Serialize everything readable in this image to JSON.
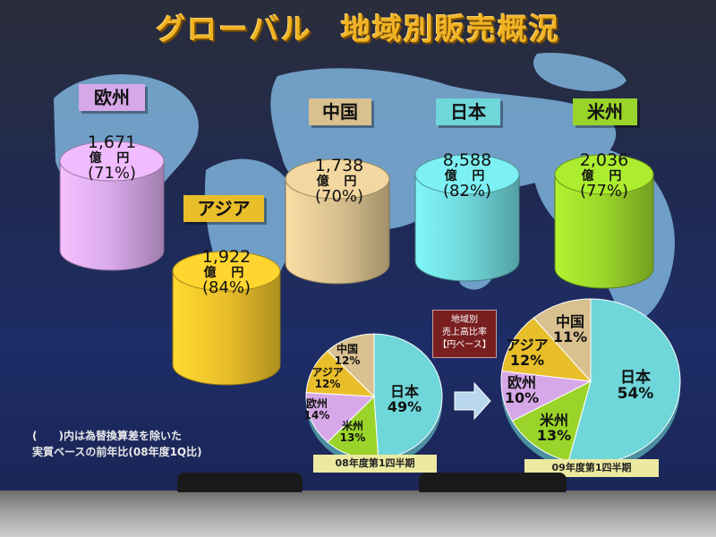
{
  "title": {
    "part1": "グローバル",
    "part2": "地域別販売概況"
  },
  "colors": {
    "europe": "#d7a8e8",
    "asia": "#e8be2a",
    "china": "#d9c08f",
    "japan": "#6fd6d9",
    "americas": "#9ad42a"
  },
  "chart_data": [
    {
      "type": "bar",
      "categories": [
        "欧州",
        "アジア",
        "中国",
        "日本",
        "米州"
      ],
      "values": [
        1671,
        1922,
        1738,
        8588,
        2036
      ],
      "value_labels": [
        "1,671",
        "1,922",
        "1,738",
        "8,588",
        "2,036"
      ],
      "unit": "億 円",
      "ratios": [
        "(71%)",
        "(84%)",
        "(70%)",
        "(82%)",
        "(77%)"
      ]
    },
    {
      "type": "pie",
      "caption": "08年度第1四半期",
      "slices": [
        {
          "label": "日本",
          "value": 49,
          "text": "49%"
        },
        {
          "label": "米州",
          "value": 13,
          "text": "13%"
        },
        {
          "label": "欧州",
          "value": 14,
          "text": "14%"
        },
        {
          "label": "アジア",
          "value": 12,
          "text": "12%"
        },
        {
          "label": "中国",
          "value": 12,
          "text": "12%"
        }
      ]
    },
    {
      "type": "pie",
      "caption": "09年度第1四半期",
      "slices": [
        {
          "label": "日本",
          "value": 54,
          "text": "54%"
        },
        {
          "label": "米州",
          "value": 13,
          "text": "13%"
        },
        {
          "label": "欧州",
          "value": 10,
          "text": "10%"
        },
        {
          "label": "アジア",
          "value": 12,
          "text": "12%"
        },
        {
          "label": "中国",
          "value": 11,
          "text": "11%"
        }
      ]
    }
  ],
  "share_box": {
    "line1": "地域別",
    "line2": "売上高比率",
    "line3": "【円ベース】"
  },
  "note": {
    "line1": "(　　)内は為替換算差を除いた",
    "line2": "実質ベースの前年比(08年度1Q比)"
  }
}
